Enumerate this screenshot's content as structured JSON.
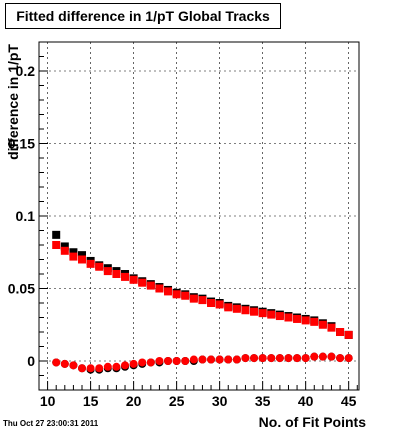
{
  "title": "Fitted difference in 1/pT  Global Tracks",
  "timestamp": "Thu Oct 27 23:00:31 2011",
  "chart_data": {
    "type": "scatter",
    "title": "Fitted difference in 1/pT  Global Tracks",
    "xlabel": "No. of Fit Points",
    "ylabel": "difference in 1/pT",
    "xlim": [
      9,
      46.2
    ],
    "ylim": [
      -0.02,
      0.22
    ],
    "x_ticks": [
      "10",
      "15",
      "20",
      "25",
      "30",
      "35",
      "40",
      "45"
    ],
    "y_ticks": [
      "0",
      "0.05",
      "0.1",
      "0.15",
      "0.2"
    ],
    "grid": true,
    "series": [
      {
        "color": "#000000",
        "marker": "square",
        "x": [
          11,
          12,
          13,
          14,
          15,
          16,
          17,
          18,
          19,
          20,
          21,
          22,
          23,
          24,
          25,
          26,
          27,
          28,
          29,
          30,
          31,
          32,
          33,
          34,
          35,
          36,
          37,
          38,
          39,
          40,
          41,
          42,
          43,
          44,
          45
        ],
        "y": [
          0.087,
          0.079,
          0.075,
          0.073,
          0.069,
          0.066,
          0.064,
          0.062,
          0.06,
          0.057,
          0.055,
          0.053,
          0.051,
          0.049,
          0.047,
          0.046,
          0.044,
          0.043,
          0.041,
          0.04,
          0.038,
          0.037,
          0.036,
          0.035,
          0.034,
          0.033,
          0.032,
          0.031,
          0.03,
          0.029,
          0.028,
          0.026,
          0.024,
          0.02,
          0.018
        ]
      },
      {
        "color": "#ff0000",
        "marker": "square",
        "x": [
          11,
          12,
          13,
          14,
          15,
          16,
          17,
          18,
          19,
          20,
          21,
          22,
          23,
          24,
          25,
          26,
          27,
          28,
          29,
          30,
          31,
          32,
          33,
          34,
          35,
          36,
          37,
          38,
          39,
          40,
          41,
          42,
          43,
          44,
          45
        ],
        "y": [
          0.08,
          0.076,
          0.072,
          0.07,
          0.067,
          0.065,
          0.062,
          0.06,
          0.058,
          0.056,
          0.054,
          0.052,
          0.05,
          0.048,
          0.046,
          0.045,
          0.043,
          0.042,
          0.04,
          0.039,
          0.037,
          0.036,
          0.035,
          0.034,
          0.033,
          0.032,
          0.031,
          0.03,
          0.029,
          0.028,
          0.027,
          0.025,
          0.023,
          0.02,
          0.018
        ]
      },
      {
        "color": "#000000",
        "marker": "circle",
        "x": [
          11,
          12,
          13,
          14,
          15,
          16,
          17,
          18,
          19,
          20,
          21,
          22,
          23,
          24,
          25,
          26,
          27,
          28,
          29,
          30,
          31,
          32,
          33,
          34,
          35,
          36,
          37,
          38,
          39,
          40,
          41,
          42,
          43,
          44,
          45
        ],
        "y": [
          -0.001,
          -0.002,
          -0.003,
          -0.005,
          -0.006,
          -0.006,
          -0.005,
          -0.005,
          -0.004,
          -0.003,
          -0.002,
          -0.001,
          -0.001,
          0,
          0,
          0,
          0,
          0.001,
          0.001,
          0.001,
          0.001,
          0.001,
          0.002,
          0.002,
          0.002,
          0.002,
          0.002,
          0.002,
          0.002,
          0.002,
          0.003,
          0.003,
          0.003,
          0.002,
          0.002
        ]
      },
      {
        "color": "#ff0000",
        "marker": "circle",
        "x": [
          11,
          12,
          13,
          14,
          15,
          16,
          17,
          18,
          19,
          20,
          21,
          22,
          23,
          24,
          25,
          26,
          27,
          28,
          29,
          30,
          31,
          32,
          33,
          34,
          35,
          36,
          37,
          38,
          39,
          40,
          41,
          42,
          43,
          44,
          45
        ],
        "y": [
          -0.001,
          -0.002,
          -0.003,
          -0.005,
          -0.005,
          -0.005,
          -0.004,
          -0.004,
          -0.003,
          -0.002,
          -0.001,
          -0.001,
          0,
          0,
          0,
          0,
          0.001,
          0.001,
          0.001,
          0.001,
          0.001,
          0.001,
          0.002,
          0.002,
          0.002,
          0.002,
          0.002,
          0.002,
          0.002,
          0.002,
          0.003,
          0.003,
          0.003,
          0.002,
          0.002
        ]
      }
    ]
  }
}
